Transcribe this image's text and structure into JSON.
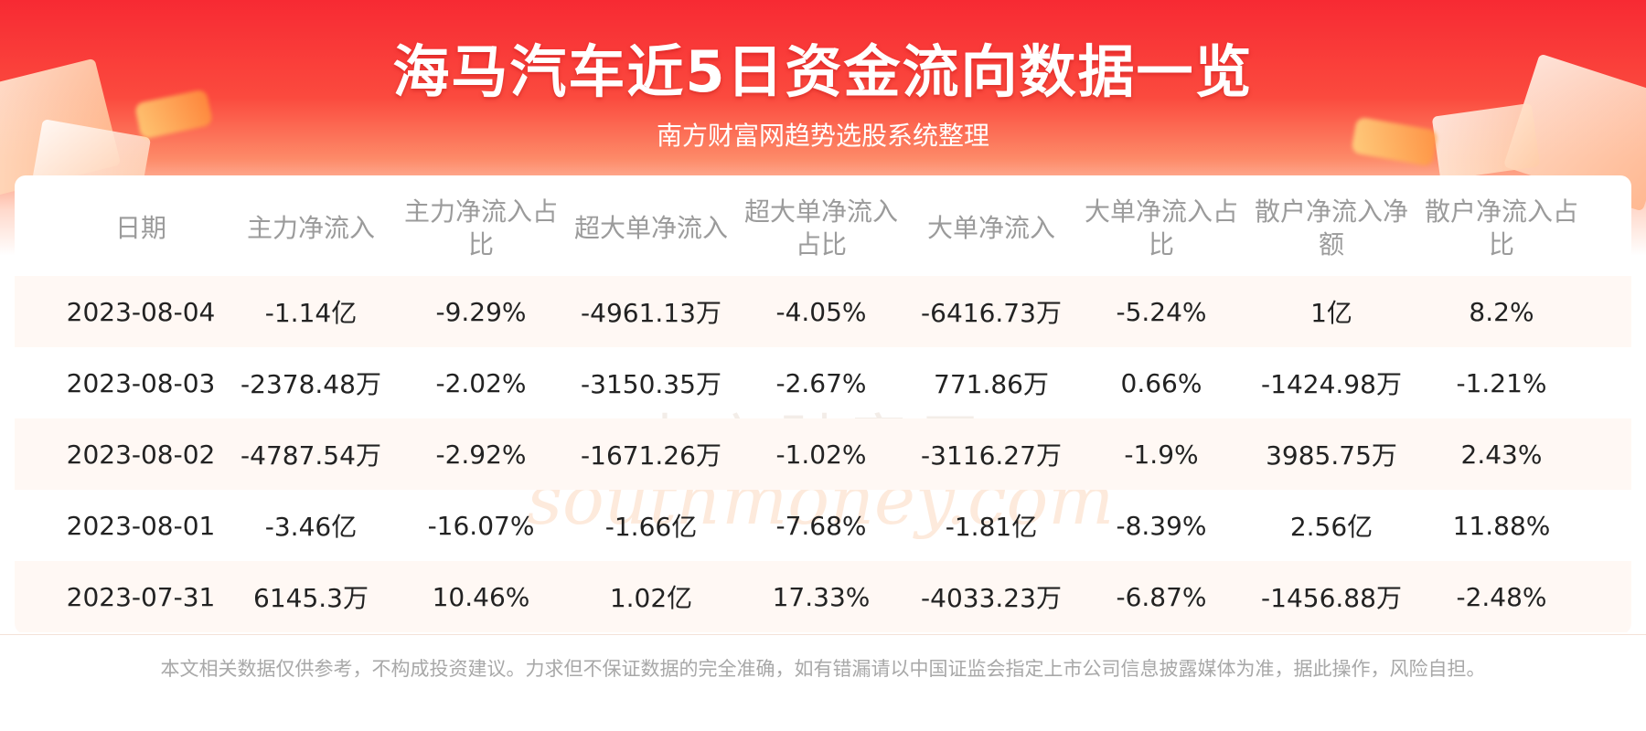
{
  "header": {
    "title": "海马汽车近5日资金流向数据一览",
    "subtitle": "南方财富网趋势选股系统整理"
  },
  "watermark": {
    "text": "南方财富网",
    "sub": "southmoney.com"
  },
  "table": {
    "columns": [
      "日期",
      "主力净流入",
      "主力净流入占比",
      "超大单净流入",
      "超大单净流入占比",
      "大单净流入",
      "大单净流入占比",
      "散户净流入净额",
      "散户净流入占比"
    ],
    "rows": [
      [
        "2023-08-04",
        "-1.14亿",
        "-9.29%",
        "-4961.13万",
        "-4.05%",
        "-6416.73万",
        "-5.24%",
        "1亿",
        "8.2%"
      ],
      [
        "2023-08-03",
        "-2378.48万",
        "-2.02%",
        "-3150.35万",
        "-2.67%",
        "771.86万",
        "0.66%",
        "-1424.98万",
        "-1.21%"
      ],
      [
        "2023-08-02",
        "-4787.54万",
        "-2.92%",
        "-1671.26万",
        "-1.02%",
        "-3116.27万",
        "-1.9%",
        "3985.75万",
        "2.43%"
      ],
      [
        "2023-08-01",
        "-3.46亿",
        "-16.07%",
        "-1.66亿",
        "-7.68%",
        "-1.81亿",
        "-8.39%",
        "2.56亿",
        "11.88%"
      ],
      [
        "2023-07-31",
        "6145.3万",
        "10.46%",
        "1.02亿",
        "17.33%",
        "-4033.23万",
        "-6.87%",
        "-1456.88万",
        "-2.48%"
      ]
    ]
  },
  "footer": {
    "disclaimer": "本文相关数据仅供参考，不构成投资建议。力求但不保证数据的完全准确，如有错漏请以中国证监会指定上市公司信息披露媒体为准，据此操作，风险自担。"
  },
  "colors": {
    "banner_top": "#f72a33",
    "row_alt": "#fff8f4",
    "header_text": "#9b9b9b",
    "cell_text": "#222222"
  }
}
